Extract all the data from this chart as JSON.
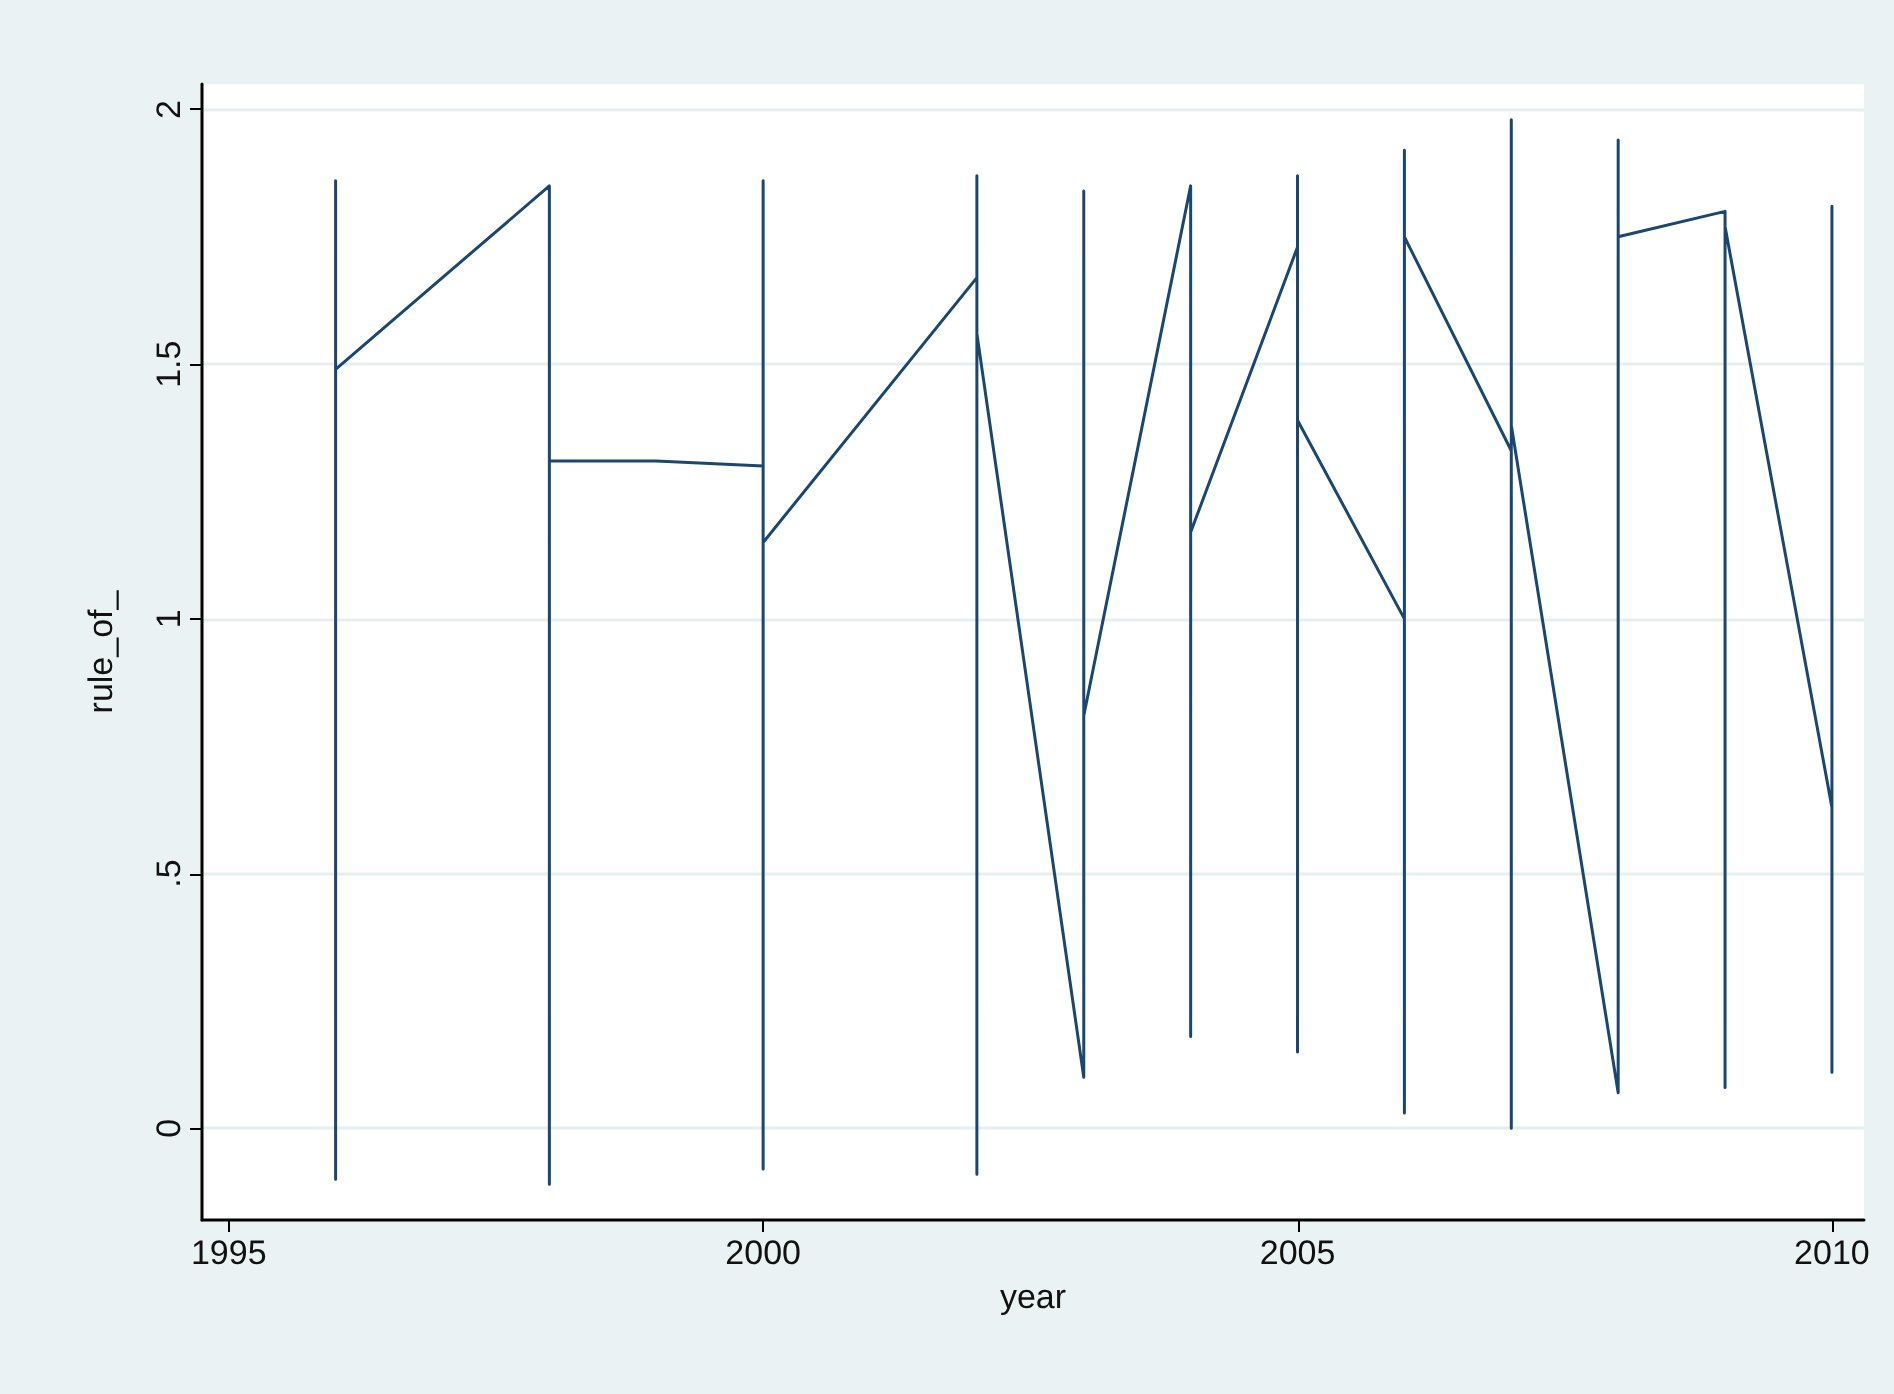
{
  "chart_data": {
    "type": "line",
    "xlabel": "year",
    "ylabel": "rule_of_",
    "x": [
      1996,
      1996,
      1996,
      1998,
      1998,
      1998,
      1999,
      2000,
      2000,
      2000,
      2000,
      2002,
      2002,
      2002,
      2002,
      2003,
      2003,
      2003,
      2004,
      2004,
      2004,
      2005,
      2005,
      2005,
      2005,
      2006,
      2006,
      2006,
      2006,
      2007,
      2007,
      2007,
      2007,
      2008,
      2008,
      2008,
      2009,
      2009,
      2009,
      2010,
      2010,
      2010
    ],
    "series": [
      {
        "color": "#1a476f",
        "values": [
          1.86,
          -0.1,
          1.49,
          1.85,
          -0.11,
          1.31,
          1.31,
          1.3,
          1.86,
          -0.08,
          1.15,
          1.67,
          1.87,
          -0.09,
          1.56,
          0.1,
          1.84,
          0.81,
          1.85,
          0.18,
          1.17,
          1.73,
          1.87,
          0.15,
          1.39,
          1.0,
          0.03,
          1.92,
          1.75,
          1.33,
          1.98,
          0.0,
          1.38,
          0.07,
          1.94,
          1.75,
          1.8,
          0.08,
          1.77,
          0.63,
          1.81,
          0.11
        ]
      }
    ],
    "xlim": [
      1994.75,
      2010.3
    ],
    "ylim": [
      -0.18,
      2.05
    ],
    "xticks": [
      1995,
      2000,
      2005,
      2010
    ],
    "yticks": [
      {
        "value": 0,
        "label": "0"
      },
      {
        "value": 0.5,
        "label": ".5"
      },
      {
        "value": 1,
        "label": "1"
      },
      {
        "value": 1.5,
        "label": "1.5"
      },
      {
        "value": 2,
        "label": "2"
      }
    ],
    "grid": "y",
    "marker": "none",
    "line_style": "solid"
  }
}
